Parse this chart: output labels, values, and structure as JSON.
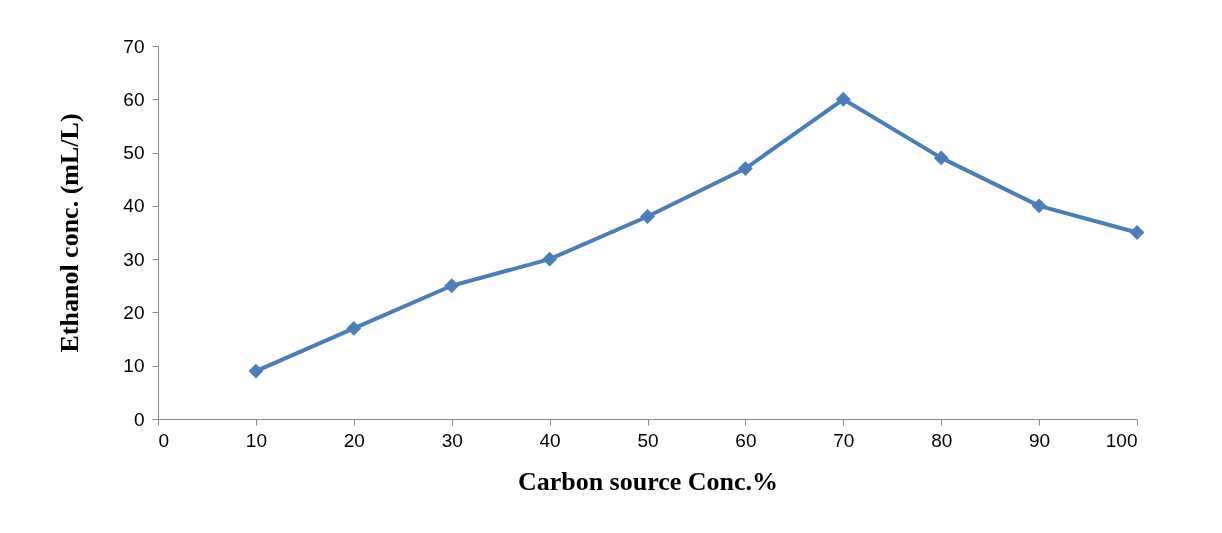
{
  "chart_data": {
    "type": "line",
    "xlabel": "Carbon source Conc.%",
    "ylabel": "Ethanol conc. (mL/L)",
    "x": [
      10,
      20,
      30,
      40,
      50,
      60,
      70,
      80,
      90,
      100
    ],
    "series": [
      {
        "color": "#4a7ebb",
        "values": [
          9,
          17,
          25,
          30,
          38,
          47,
          60,
          49,
          40,
          35
        ]
      }
    ],
    "xlim": [
      0,
      100
    ],
    "xticks": [
      0,
      10,
      20,
      30,
      40,
      50,
      60,
      70,
      80,
      90,
      100
    ],
    "ylim": [
      0,
      70
    ],
    "yticks": [
      0,
      10,
      20,
      30,
      40,
      50,
      60,
      70
    ],
    "grid": false,
    "legend": false,
    "marker": "diamond",
    "line_style": "solid"
  }
}
